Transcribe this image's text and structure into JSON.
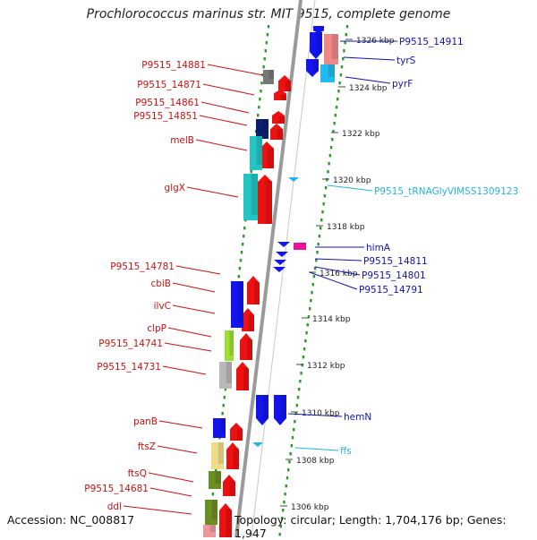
{
  "title": "Prochlorococcus marinus str. MIT 9515, complete genome",
  "footer": {
    "accession": "Accession: NC_008817",
    "topology": "Topology: circular; Length: 1,704,176 bp; Genes: 1,947"
  },
  "colors": {
    "backbone": "#9a9a9a",
    "tick_dots": "#2a9a2a",
    "left_label": "#cc1111",
    "right_label": "#1111bb",
    "rna_label": "#22b4e8",
    "gene_red": "#ee1111",
    "gene_blue": "#1414ee"
  },
  "scale_labels": [
    "1326 kbp",
    "1324 kbp",
    "1322 kbp",
    "1320 kbp",
    "1318 kbp",
    "1316 kbp",
    "1314 kbp",
    "1312 kbp",
    "1310 kbp",
    "1308 kbp",
    "1306 kbp"
  ],
  "left_genes": [
    "P9515_14881",
    "P9515_14871",
    "P9515_14861",
    "P9515_14851",
    "melB",
    "glgX",
    "P9515_14781",
    "cbiB",
    "ilvC",
    "clpP",
    "P9515_14741",
    "P9515_14731",
    "panB",
    "ftsZ",
    "ftsQ",
    "P9515_14681",
    "ddl"
  ],
  "right_genes": [
    "P9515_14911",
    "tyrS",
    "pyrF",
    "P9515_tRNAGlyVIMSS1309123",
    "himA",
    "P9515_14811",
    "P9515_14801",
    "P9515_14791",
    "hemN",
    "ffs"
  ]
}
